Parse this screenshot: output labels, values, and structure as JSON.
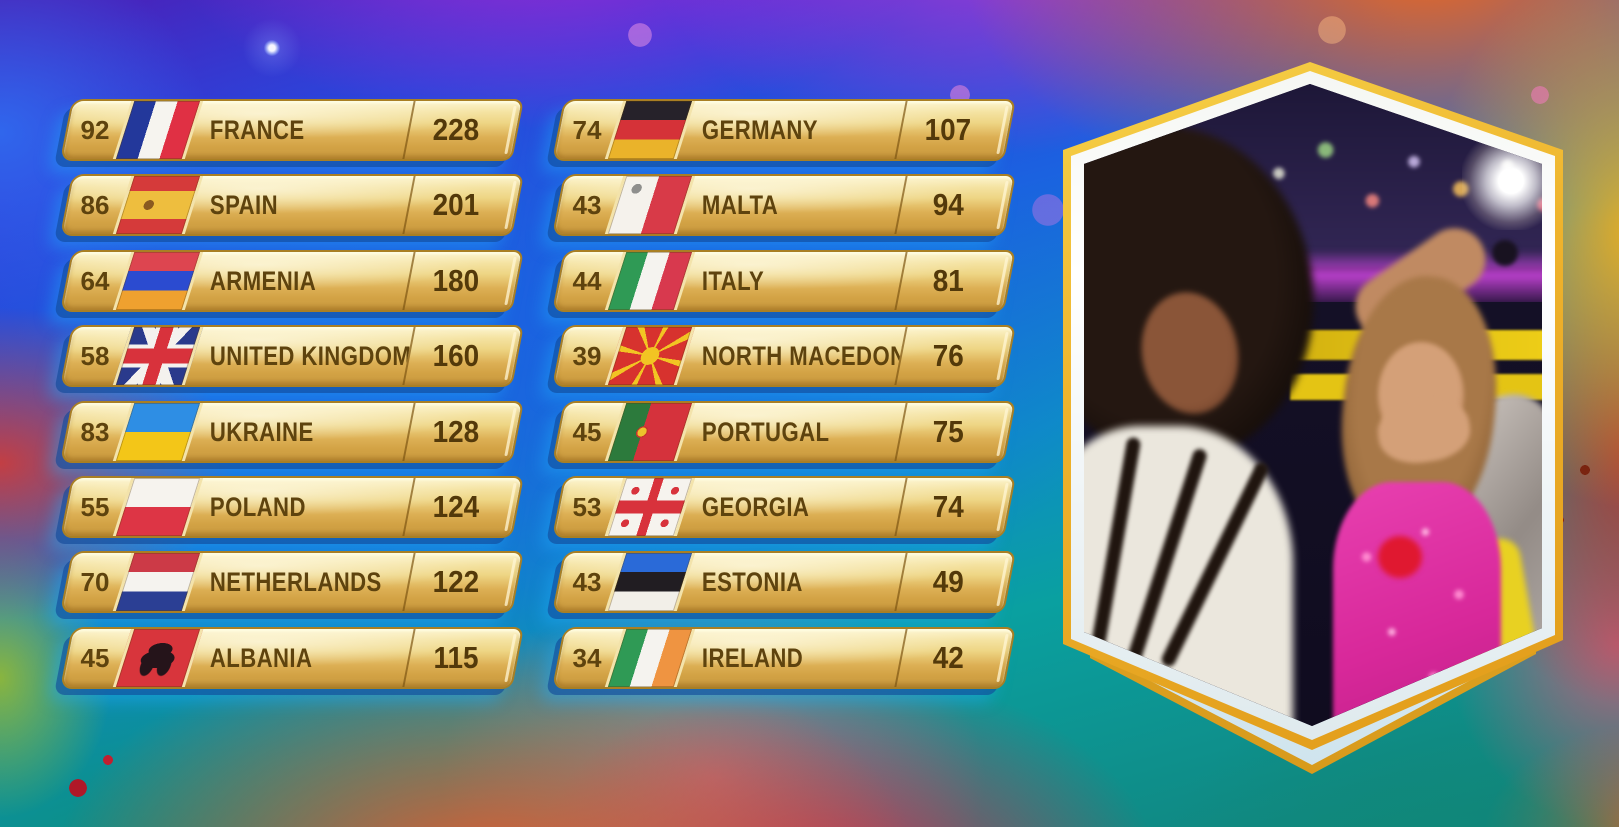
{
  "screen": {
    "kind": "song-contest-scoreboard-broadcast"
  },
  "colors": {
    "bar_gold_top": "#fdf5cf",
    "bar_gold_bottom": "#c99a40",
    "bar_border": "#a97f24",
    "bar_text": "#5e430e",
    "bar_shadow_blue": "#1e64c8",
    "frame_border_gold": "#eeb22c",
    "frame_border_cream": "#f4f6f2",
    "background_blue": "#1b62e0",
    "background_magenta": "#b028d8",
    "background_orange": "#f26a18",
    "background_teal": "#0c8a80"
  },
  "scoreboard": {
    "columns": [
      {
        "side": "left",
        "rows": [
          {
            "left_score": "92",
            "country": "FRANCE",
            "total": "228",
            "flag": "france"
          },
          {
            "left_score": "86",
            "country": "SPAIN",
            "total": "201",
            "flag": "spain"
          },
          {
            "left_score": "64",
            "country": "ARMENIA",
            "total": "180",
            "flag": "armenia"
          },
          {
            "left_score": "58",
            "country": "UNITED KINGDOM",
            "total": "160",
            "flag": "united-kingdom"
          },
          {
            "left_score": "83",
            "country": "UKRAINE",
            "total": "128",
            "flag": "ukraine"
          },
          {
            "left_score": "55",
            "country": "POLAND",
            "total": "124",
            "flag": "poland"
          },
          {
            "left_score": "70",
            "country": "NETHERLANDS",
            "total": "122",
            "flag": "netherlands"
          },
          {
            "left_score": "45",
            "country": "ALBANIA",
            "total": "115",
            "flag": "albania"
          }
        ]
      },
      {
        "side": "right",
        "rows": [
          {
            "left_score": "74",
            "country": "GERMANY",
            "total": "107",
            "flag": "germany"
          },
          {
            "left_score": "43",
            "country": "MALTA",
            "total": "94",
            "flag": "malta"
          },
          {
            "left_score": "44",
            "country": "ITALY",
            "total": "81",
            "flag": "italy"
          },
          {
            "left_score": "39",
            "country": "NORTH MACEDONIA",
            "total": "76",
            "flag": "north-macedonia"
          },
          {
            "left_score": "45",
            "country": "PORTUGAL",
            "total": "75",
            "flag": "portugal"
          },
          {
            "left_score": "53",
            "country": "GEORGIA",
            "total": "74",
            "flag": "georgia"
          },
          {
            "left_score": "43",
            "country": "ESTONIA",
            "total": "49",
            "flag": "estonia"
          },
          {
            "left_score": "34",
            "country": "IRELAND",
            "total": "42",
            "flag": "ireland"
          }
        ]
      }
    ]
  }
}
